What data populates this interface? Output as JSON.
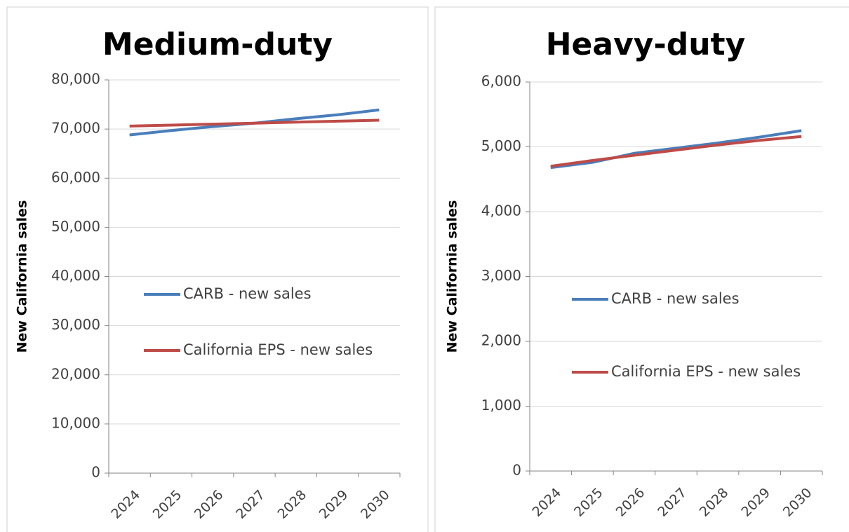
{
  "chart_data": [
    {
      "type": "line",
      "title": "Medium-duty",
      "y_label": "New California sales",
      "categories": [
        "2024",
        "2025",
        "2026",
        "2027",
        "2028",
        "2029",
        "2030"
      ],
      "series": [
        {
          "name": "CARB - new sales",
          "color": "#4a7ebb",
          "values": [
            68800,
            69700,
            70500,
            71200,
            72100,
            72900,
            73900
          ]
        },
        {
          "name": "California EPS - new sales",
          "color": "#be4b48",
          "values": [
            70600,
            70800,
            71000,
            71200,
            71400,
            71600,
            71800
          ]
        }
      ],
      "ylim": [
        0,
        80000
      ],
      "yticks": [
        0,
        {
          "value": 10000,
          "label": "10,000"
        },
        {
          "value": 20000,
          "label": "20,000"
        },
        {
          "value": 30000,
          "label": "30,000"
        },
        {
          "value": 40000,
          "label": "40,000"
        },
        {
          "value": 50000,
          "label": "50,000"
        },
        {
          "value": 60000,
          "label": "60,000"
        },
        {
          "value": 70000,
          "label": "70,000"
        },
        {
          "value": 80000,
          "label": "80,000"
        }
      ],
      "grid": true
    },
    {
      "type": "line",
      "title": "Heavy-duty",
      "y_label": "New California sales",
      "categories": [
        "2024",
        "2025",
        "2026",
        "2027",
        "2028",
        "2029",
        "2030"
      ],
      "series": [
        {
          "name": "CARB - new sales",
          "color": "#4a7ebb",
          "values": [
            4680,
            4760,
            4900,
            4980,
            5060,
            5150,
            5250
          ]
        },
        {
          "name": "California EPS - new sales",
          "color": "#be4b48",
          "values": [
            4700,
            4790,
            4870,
            4950,
            5030,
            5100,
            5160
          ]
        }
      ],
      "ylim": [
        0,
        6000
      ],
      "yticks": [
        0,
        {
          "value": 1000,
          "label": "1,000"
        },
        {
          "value": 2000,
          "label": "2,000"
        },
        {
          "value": 3000,
          "label": "3,000"
        },
        {
          "value": 4000,
          "label": "4,000"
        },
        {
          "value": 5000,
          "label": "5,000"
        },
        {
          "value": 6000,
          "label": "6,000"
        }
      ],
      "grid": true
    }
  ]
}
